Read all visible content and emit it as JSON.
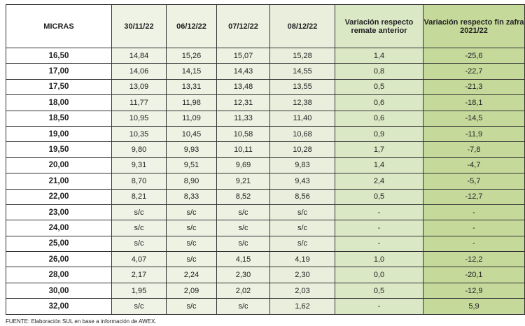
{
  "table": {
    "headers": [
      "MICRAS",
      "30/11/22",
      "06/12/22",
      "07/12/22",
      "08/12/22",
      "Variación respecto remate anterior",
      "Variación respecto fin zafra 2021/22"
    ],
    "rows": [
      [
        "16,50",
        "14,84",
        "15,26",
        "15,07",
        "15,28",
        "1,4",
        "-25,6"
      ],
      [
        "17,00",
        "14,06",
        "14,15",
        "14,43",
        "14,55",
        "0,8",
        "-22,7"
      ],
      [
        "17,50",
        "13,09",
        "13,31",
        "13,48",
        "13,55",
        "0,5",
        "-21,3"
      ],
      [
        "18,00",
        "11,77",
        "11,98",
        "12,31",
        "12,38",
        "0,6",
        "-18,1"
      ],
      [
        "18,50",
        "10,95",
        "11,09",
        "11,33",
        "11,40",
        "0,6",
        "-14,5"
      ],
      [
        "19,00",
        "10,35",
        "10,45",
        "10,58",
        "10,68",
        "0,9",
        "-11,9"
      ],
      [
        "19,50",
        "9,80",
        "9,93",
        "10,11",
        "10,28",
        "1,7",
        "-7,8"
      ],
      [
        "20,00",
        "9,31",
        "9,51",
        "9,69",
        "9,83",
        "1,4",
        "-4,7"
      ],
      [
        "21,00",
        "8,70",
        "8,90",
        "9,21",
        "9,43",
        "2,4",
        "-5,7"
      ],
      [
        "22,00",
        "8,21",
        "8,33",
        "8,52",
        "8,56",
        "0,5",
        "-12,7"
      ],
      [
        "23,00",
        "s/c",
        "s/c",
        "s/c",
        "s/c",
        "-",
        "-"
      ],
      [
        "24,00",
        "s/c",
        "s/c",
        "s/c",
        "s/c",
        "-",
        "-"
      ],
      [
        "25,00",
        "s/c",
        "s/c",
        "s/c",
        "s/c",
        "-",
        "-"
      ],
      [
        "26,00",
        "4,07",
        "s/c",
        "4,15",
        "4,19",
        "1,0",
        "-12,2"
      ],
      [
        "28,00",
        "2,17",
        "2,24",
        "2,30",
        "2,30",
        "0,0",
        "-20,1"
      ],
      [
        "30,00",
        "1,95",
        "2,09",
        "2,02",
        "2,03",
        "0,5",
        "-12,9"
      ],
      [
        "32,00",
        "s/c",
        "s/c",
        "s/c",
        "1,62",
        "-",
        "5,9"
      ]
    ]
  },
  "footer": "FUENTE: Elaboración SUL en base a información de AWEX.",
  "colors": {
    "date_cols": "#edf2e3",
    "var_anterior": "#dbe8c5",
    "var_zafra": "#c5d99b"
  }
}
